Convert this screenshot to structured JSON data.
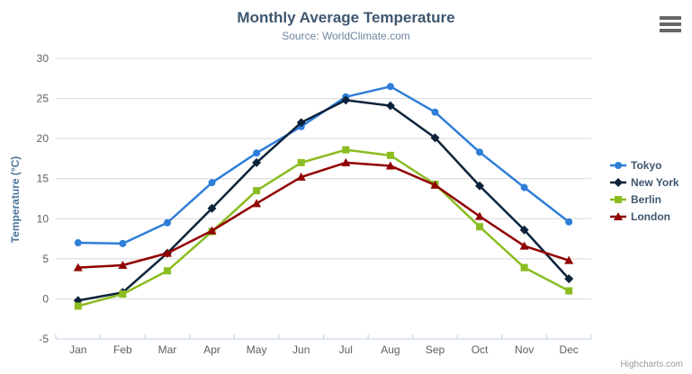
{
  "header": {
    "title": "Monthly Average Temperature",
    "subtitle": "Source: WorldClimate.com"
  },
  "credit": "Highcharts.com",
  "icons": {
    "menu": "hamburger-menu-icon"
  },
  "colors": {
    "title": "#3E576F",
    "subtitle": "#6D869F",
    "axis_title": "#4d759e",
    "axis_labels": "#606060",
    "gridline": "#d8d8d8",
    "axis_line": "#c0d0e0",
    "legend_text": "#3E576F",
    "menu_icon": "#666666",
    "credit_text": "#999999"
  },
  "chart_data": {
    "type": "line",
    "title": "Monthly Average Temperature",
    "subtitle": "Source: WorldClimate.com",
    "xlabel": "",
    "ylabel": "Temperature (°C)",
    "ylim": [
      -5,
      30
    ],
    "yticks": [
      -5,
      0,
      5,
      10,
      15,
      20,
      25,
      30
    ],
    "grid": true,
    "legend_position": "right",
    "categories": [
      "Jan",
      "Feb",
      "Mar",
      "Apr",
      "May",
      "Jun",
      "Jul",
      "Aug",
      "Sep",
      "Oct",
      "Nov",
      "Dec"
    ],
    "series": [
      {
        "name": "Tokyo",
        "color": "#2f7ed8",
        "marker": "circle",
        "values": [
          7.0,
          6.9,
          9.5,
          14.5,
          18.2,
          21.5,
          25.2,
          26.5,
          23.3,
          18.3,
          13.9,
          9.6
        ]
      },
      {
        "name": "New York",
        "color": "#0d233a",
        "marker": "diamond",
        "values": [
          -0.2,
          0.8,
          5.7,
          11.3,
          17.0,
          22.0,
          24.8,
          24.1,
          20.1,
          14.1,
          8.6,
          2.5
        ]
      },
      {
        "name": "Berlin",
        "color": "#8bbc21",
        "marker": "square",
        "values": [
          -0.9,
          0.6,
          3.5,
          8.4,
          13.5,
          17.0,
          18.6,
          17.9,
          14.3,
          9.0,
          3.9,
          1.0
        ]
      },
      {
        "name": "London",
        "color": "#910000",
        "marker": "triangle",
        "values": [
          3.9,
          4.2,
          5.7,
          8.5,
          11.9,
          15.2,
          17.0,
          16.6,
          14.2,
          10.3,
          6.6,
          4.8
        ]
      }
    ]
  }
}
